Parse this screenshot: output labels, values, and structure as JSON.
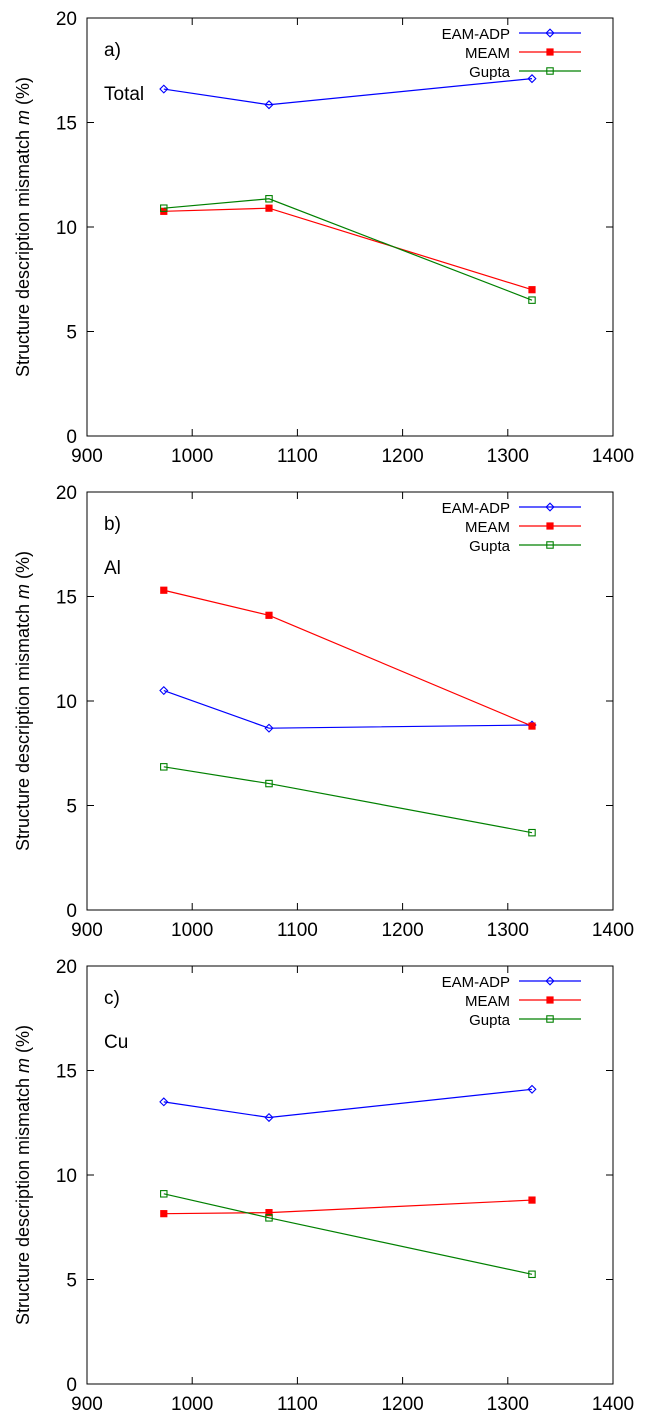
{
  "chart_data": [
    {
      "type": "line",
      "panel_label": "a)",
      "annotation": "Total",
      "ylabel_parts": [
        "Structure description mismatch ",
        "m",
        " (%)"
      ],
      "xlim": [
        900,
        1400
      ],
      "ylim": [
        0,
        20
      ],
      "xticks": [
        "900",
        "1000",
        "1100",
        "1200",
        "1300",
        "1400"
      ],
      "yticks": [
        "0",
        "5",
        "10",
        "15",
        "20"
      ],
      "grid": false,
      "legend_position": "top-right",
      "series": [
        {
          "name": "EAM-ADP",
          "color": "#0000ff",
          "marker": "diamond-open",
          "x": [
            973,
            1073,
            1323
          ],
          "y": [
            16.6,
            15.85,
            17.1
          ]
        },
        {
          "name": "MEAM",
          "color": "#ff0000",
          "marker": "square-filled",
          "x": [
            973,
            1073,
            1323
          ],
          "y": [
            10.75,
            10.9,
            7.0
          ]
        },
        {
          "name": "Gupta",
          "color": "#008000",
          "marker": "square-open",
          "x": [
            973,
            1073,
            1323
          ],
          "y": [
            10.9,
            11.35,
            6.5
          ]
        }
      ]
    },
    {
      "type": "line",
      "panel_label": "b)",
      "annotation": "Al",
      "ylabel_parts": [
        "Structure description mismatch ",
        "m",
        " (%)"
      ],
      "xlim": [
        900,
        1400
      ],
      "ylim": [
        0,
        20
      ],
      "xticks": [
        "900",
        "1000",
        "1100",
        "1200",
        "1300",
        "1400"
      ],
      "yticks": [
        "0",
        "5",
        "10",
        "15",
        "20"
      ],
      "grid": false,
      "legend_position": "top-right",
      "series": [
        {
          "name": "EAM-ADP",
          "color": "#0000ff",
          "marker": "diamond-open",
          "x": [
            973,
            1073,
            1323
          ],
          "y": [
            10.5,
            8.7,
            8.85
          ]
        },
        {
          "name": "MEAM",
          "color": "#ff0000",
          "marker": "square-filled",
          "x": [
            973,
            1073,
            1323
          ],
          "y": [
            15.3,
            14.1,
            8.8
          ]
        },
        {
          "name": "Gupta",
          "color": "#008000",
          "marker": "square-open",
          "x": [
            973,
            1073,
            1323
          ],
          "y": [
            6.85,
            6.05,
            3.7
          ]
        }
      ]
    },
    {
      "type": "line",
      "panel_label": "c)",
      "annotation": "Cu",
      "ylabel_parts": [
        "Structure description mismatch ",
        "m",
        " (%)"
      ],
      "xlim": [
        900,
        1400
      ],
      "ylim": [
        0,
        20
      ],
      "xticks": [
        "900",
        "1000",
        "1100",
        "1200",
        "1300",
        "1400"
      ],
      "yticks": [
        "0",
        "5",
        "10",
        "15",
        "20"
      ],
      "grid": false,
      "legend_position": "top-right",
      "series": [
        {
          "name": "EAM-ADP",
          "color": "#0000ff",
          "marker": "diamond-open",
          "x": [
            973,
            1073,
            1323
          ],
          "y": [
            13.5,
            12.75,
            14.1
          ]
        },
        {
          "name": "MEAM",
          "color": "#ff0000",
          "marker": "square-filled",
          "x": [
            973,
            1073,
            1323
          ],
          "y": [
            8.15,
            8.2,
            8.8
          ]
        },
        {
          "name": "Gupta",
          "color": "#008000",
          "marker": "square-open",
          "x": [
            973,
            1073,
            1323
          ],
          "y": [
            9.1,
            7.95,
            5.25
          ]
        }
      ]
    }
  ]
}
